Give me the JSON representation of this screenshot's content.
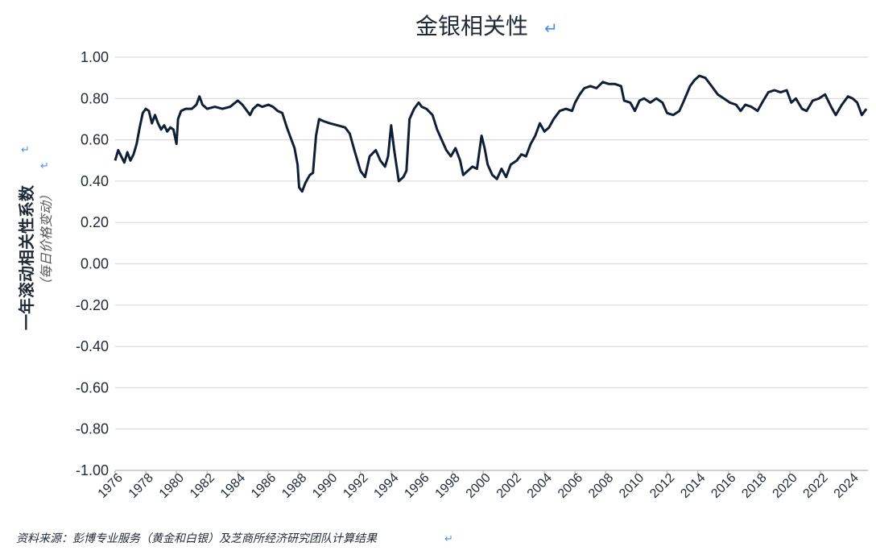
{
  "chart_data": {
    "type": "line",
    "title": "金银相关性",
    "ylabel": "一年滚动相关性系数",
    "ylabel_sub": "（每日价格变动）",
    "source": "资料来源：彭博专业服务（黄金和白银）及芝商所经济研究团队计算结果",
    "ylim": [
      -1.0,
      1.0
    ],
    "yticks": [
      "1.00",
      "0.80",
      "0.60",
      "0.40",
      "0.20",
      "0.00",
      "-0.20",
      "-0.40",
      "-0.60",
      "-0.80",
      "-1.00"
    ],
    "xlim": [
      1976.0,
      2025.1
    ],
    "xticks": [
      "1976",
      "1978",
      "1980",
      "1982",
      "1984",
      "1986",
      "1988",
      "1990",
      "1992",
      "1994",
      "1996",
      "1998",
      "2000",
      "2002",
      "2004",
      "2006",
      "2008",
      "2010",
      "2012",
      "2014",
      "2016",
      "2018",
      "2020",
      "2022",
      "2024"
    ],
    "grid": true,
    "series": [
      {
        "color": "#0f1f35",
        "points": [
          [
            1976.0,
            0.5
          ],
          [
            1976.2,
            0.55
          ],
          [
            1976.4,
            0.52
          ],
          [
            1976.6,
            0.49
          ],
          [
            1976.8,
            0.54
          ],
          [
            1977.0,
            0.5
          ],
          [
            1977.2,
            0.53
          ],
          [
            1977.4,
            0.58
          ],
          [
            1977.6,
            0.66
          ],
          [
            1977.8,
            0.73
          ],
          [
            1978.0,
            0.75
          ],
          [
            1978.2,
            0.74
          ],
          [
            1978.4,
            0.68
          ],
          [
            1978.6,
            0.72
          ],
          [
            1978.8,
            0.68
          ],
          [
            1979.0,
            0.65
          ],
          [
            1979.2,
            0.67
          ],
          [
            1979.4,
            0.64
          ],
          [
            1979.6,
            0.66
          ],
          [
            1979.8,
            0.65
          ],
          [
            1980.0,
            0.58
          ],
          [
            1980.1,
            0.7
          ],
          [
            1980.3,
            0.74
          ],
          [
            1980.6,
            0.75
          ],
          [
            1981.0,
            0.75
          ],
          [
            1981.3,
            0.77
          ],
          [
            1981.5,
            0.81
          ],
          [
            1981.7,
            0.77
          ],
          [
            1982.0,
            0.75
          ],
          [
            1982.5,
            0.76
          ],
          [
            1983.0,
            0.75
          ],
          [
            1983.5,
            0.76
          ],
          [
            1984.0,
            0.79
          ],
          [
            1984.3,
            0.77
          ],
          [
            1984.6,
            0.74
          ],
          [
            1984.8,
            0.72
          ],
          [
            1985.0,
            0.75
          ],
          [
            1985.3,
            0.77
          ],
          [
            1985.6,
            0.76
          ],
          [
            1986.0,
            0.77
          ],
          [
            1986.3,
            0.76
          ],
          [
            1986.6,
            0.74
          ],
          [
            1986.9,
            0.73
          ],
          [
            1987.2,
            0.66
          ],
          [
            1987.4,
            0.62
          ],
          [
            1987.7,
            0.56
          ],
          [
            1987.9,
            0.48
          ],
          [
            1988.0,
            0.37
          ],
          [
            1988.2,
            0.35
          ],
          [
            1988.4,
            0.39
          ],
          [
            1988.7,
            0.43
          ],
          [
            1988.9,
            0.44
          ],
          [
            1989.1,
            0.62
          ],
          [
            1989.3,
            0.7
          ],
          [
            1989.6,
            0.69
          ],
          [
            1990.0,
            0.68
          ],
          [
            1990.5,
            0.67
          ],
          [
            1991.0,
            0.66
          ],
          [
            1991.3,
            0.63
          ],
          [
            1991.6,
            0.55
          ],
          [
            1992.0,
            0.45
          ],
          [
            1992.3,
            0.42
          ],
          [
            1992.6,
            0.52
          ],
          [
            1993.0,
            0.55
          ],
          [
            1993.3,
            0.5
          ],
          [
            1993.6,
            0.47
          ],
          [
            1993.8,
            0.52
          ],
          [
            1994.0,
            0.67
          ],
          [
            1994.2,
            0.55
          ],
          [
            1994.5,
            0.4
          ],
          [
            1994.8,
            0.42
          ],
          [
            1995.0,
            0.45
          ],
          [
            1995.2,
            0.7
          ],
          [
            1995.5,
            0.75
          ],
          [
            1995.8,
            0.78
          ],
          [
            1996.0,
            0.76
          ],
          [
            1996.3,
            0.75
          ],
          [
            1996.7,
            0.72
          ],
          [
            1997.0,
            0.65
          ],
          [
            1997.3,
            0.6
          ],
          [
            1997.6,
            0.55
          ],
          [
            1997.9,
            0.52
          ],
          [
            1998.2,
            0.56
          ],
          [
            1998.5,
            0.5
          ],
          [
            1998.7,
            0.43
          ],
          [
            1999.0,
            0.45
          ],
          [
            1999.3,
            0.47
          ],
          [
            1999.6,
            0.46
          ],
          [
            1999.9,
            0.62
          ],
          [
            2000.1,
            0.56
          ],
          [
            2000.3,
            0.48
          ],
          [
            2000.6,
            0.43
          ],
          [
            2000.9,
            0.41
          ],
          [
            2001.2,
            0.46
          ],
          [
            2001.5,
            0.42
          ],
          [
            2001.8,
            0.48
          ],
          [
            2002.2,
            0.5
          ],
          [
            2002.5,
            0.53
          ],
          [
            2002.8,
            0.52
          ],
          [
            2003.1,
            0.58
          ],
          [
            2003.4,
            0.62
          ],
          [
            2003.7,
            0.68
          ],
          [
            2004.0,
            0.64
          ],
          [
            2004.3,
            0.66
          ],
          [
            2004.6,
            0.7
          ],
          [
            2005.0,
            0.74
          ],
          [
            2005.4,
            0.75
          ],
          [
            2005.8,
            0.74
          ],
          [
            2006.0,
            0.78
          ],
          [
            2006.3,
            0.82
          ],
          [
            2006.6,
            0.85
          ],
          [
            2007.0,
            0.86
          ],
          [
            2007.4,
            0.85
          ],
          [
            2007.8,
            0.88
          ],
          [
            2008.2,
            0.87
          ],
          [
            2008.6,
            0.87
          ],
          [
            2009.0,
            0.86
          ],
          [
            2009.2,
            0.79
          ],
          [
            2009.6,
            0.78
          ],
          [
            2009.9,
            0.74
          ],
          [
            2010.2,
            0.79
          ],
          [
            2010.5,
            0.8
          ],
          [
            2010.9,
            0.78
          ],
          [
            2011.3,
            0.8
          ],
          [
            2011.7,
            0.78
          ],
          [
            2012.0,
            0.73
          ],
          [
            2012.4,
            0.72
          ],
          [
            2012.8,
            0.74
          ],
          [
            2013.1,
            0.79
          ],
          [
            2013.5,
            0.86
          ],
          [
            2013.8,
            0.89
          ],
          [
            2014.1,
            0.91
          ],
          [
            2014.5,
            0.9
          ],
          [
            2014.9,
            0.86
          ],
          [
            2015.3,
            0.82
          ],
          [
            2015.7,
            0.8
          ],
          [
            2016.1,
            0.78
          ],
          [
            2016.5,
            0.77
          ],
          [
            2016.8,
            0.74
          ],
          [
            2017.1,
            0.77
          ],
          [
            2017.5,
            0.76
          ],
          [
            2017.9,
            0.74
          ],
          [
            2018.2,
            0.78
          ],
          [
            2018.6,
            0.83
          ],
          [
            2019.0,
            0.84
          ],
          [
            2019.4,
            0.83
          ],
          [
            2019.8,
            0.84
          ],
          [
            2020.1,
            0.78
          ],
          [
            2020.4,
            0.8
          ],
          [
            2020.8,
            0.75
          ],
          [
            2021.1,
            0.74
          ],
          [
            2021.5,
            0.79
          ],
          [
            2021.9,
            0.8
          ],
          [
            2022.3,
            0.82
          ],
          [
            2022.7,
            0.76
          ],
          [
            2023.0,
            0.72
          ],
          [
            2023.4,
            0.77
          ],
          [
            2023.8,
            0.81
          ],
          [
            2024.1,
            0.8
          ],
          [
            2024.4,
            0.78
          ],
          [
            2024.7,
            0.72
          ],
          [
            2025.0,
            0.75
          ]
        ]
      }
    ]
  }
}
